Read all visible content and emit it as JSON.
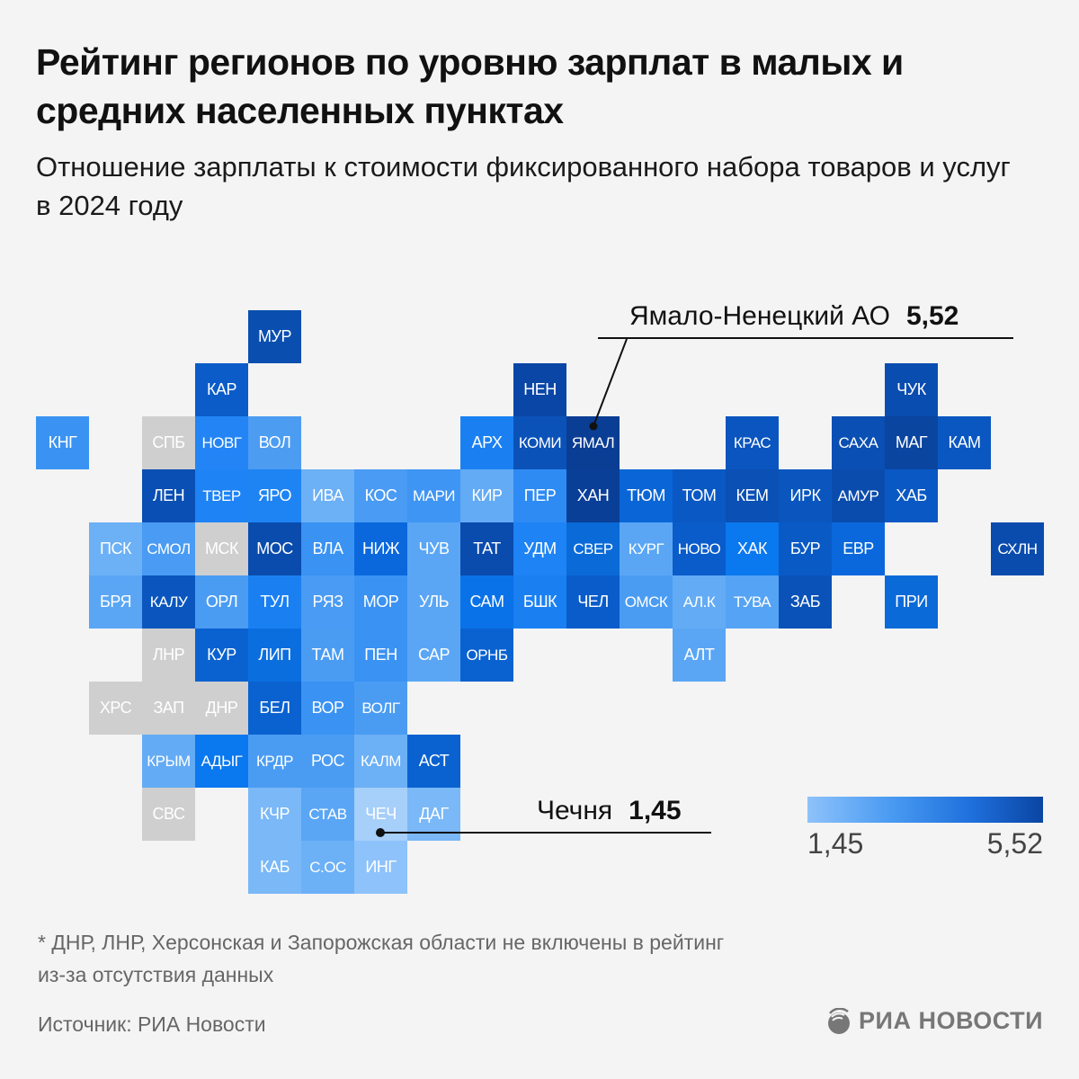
{
  "title": "Рейтинг регионов по уровню зарплат в малых и средних населенных пунктах",
  "subtitle": "Отношение зарплаты к стоимости фиксированного набора товаров и услуг в 2024 году",
  "callouts": {
    "max": {
      "label": "Ямало-Ненецкий АО",
      "value": "5,52",
      "region": "ЯМАЛ"
    },
    "min": {
      "label": "Чечня",
      "value": "1,45",
      "region": "ЧЕЧ"
    }
  },
  "legend": {
    "min": "1,45",
    "max": "5,52",
    "color_min": "#8ec2fb",
    "color_max": "#0a45a2"
  },
  "footnote_line1": "* ДНР, ЛНР, Херсонская и Запорожская области не включены в рейтинг",
  "footnote_line2": "из-за отсутствия данных",
  "source": "Источник: РИА Новости",
  "logo": "РИА НОВОСТИ",
  "no_data_color": "#cfcfcf",
  "chart_data": {
    "type": "heatmap",
    "title": "Рейтинг регионов по уровню зарплат в малых и средних населенных пунктах",
    "value_range": [
      1.45,
      5.52
    ],
    "labeled_values": {
      "ЯМАЛ": 5.52,
      "ЧЕЧ": 1.45
    },
    "no_data": [
      "СПБ",
      "МСК",
      "ЛНР",
      "ХРС",
      "ЗАП",
      "ДНР",
      "СВС"
    ],
    "regions": [
      {
        "code": "МУР",
        "col": 4,
        "row": 0,
        "color": "#0a4fb0"
      },
      {
        "code": "КАР",
        "col": 3,
        "row": 1,
        "color": "#0b5cc8"
      },
      {
        "code": "НЕН",
        "col": 9,
        "row": 1,
        "color": "#0a46a6"
      },
      {
        "code": "ЧУК",
        "col": 16,
        "row": 1,
        "color": "#0a4db0"
      },
      {
        "code": "КНГ",
        "col": 0,
        "row": 2,
        "color": "#3a93f2"
      },
      {
        "code": "СПБ",
        "col": 2,
        "row": 2,
        "color": "#cfcfcf"
      },
      {
        "code": "НОВГ",
        "col": 3,
        "row": 2,
        "color": "#2385f5"
      },
      {
        "code": "ВОЛ",
        "col": 4,
        "row": 2,
        "color": "#4c9cf2"
      },
      {
        "code": "АРХ",
        "col": 8,
        "row": 2,
        "color": "#1a80f2"
      },
      {
        "code": "КОМИ",
        "col": 9,
        "row": 2,
        "color": "#0b52b8"
      },
      {
        "code": "ЯМАЛ",
        "col": 10,
        "row": 2,
        "color": "#0a3d94"
      },
      {
        "code": "КРАС",
        "col": 13,
        "row": 2,
        "color": "#0a55bf"
      },
      {
        "code": "САХА",
        "col": 15,
        "row": 2,
        "color": "#0a4fb3"
      },
      {
        "code": "МАГ",
        "col": 16,
        "row": 2,
        "color": "#0a45a0"
      },
      {
        "code": "КАМ",
        "col": 17,
        "row": 2,
        "color": "#0a57c2"
      },
      {
        "code": "ЛЕН",
        "col": 2,
        "row": 3,
        "color": "#0a4fb3"
      },
      {
        "code": "ТВЕР",
        "col": 3,
        "row": 3,
        "color": "#1e83f5"
      },
      {
        "code": "ЯРО",
        "col": 4,
        "row": 3,
        "color": "#1f84f3"
      },
      {
        "code": "ИВА",
        "col": 5,
        "row": 3,
        "color": "#6cb0f6"
      },
      {
        "code": "КОС",
        "col": 6,
        "row": 3,
        "color": "#4a9bf3"
      },
      {
        "code": "МАРИ",
        "col": 7,
        "row": 3,
        "color": "#3f95f3"
      },
      {
        "code": "КИР",
        "col": 8,
        "row": 3,
        "color": "#63abf5"
      },
      {
        "code": "ПЕР",
        "col": 9,
        "row": 3,
        "color": "#2e8bf3"
      },
      {
        "code": "ХАН",
        "col": 10,
        "row": 3,
        "color": "#0a3f98"
      },
      {
        "code": "ТЮМ",
        "col": 11,
        "row": 3,
        "color": "#0a66d6"
      },
      {
        "code": "ТОМ",
        "col": 12,
        "row": 3,
        "color": "#0a58c4"
      },
      {
        "code": "КЕМ",
        "col": 13,
        "row": 3,
        "color": "#0a50b5"
      },
      {
        "code": "ИРК",
        "col": 14,
        "row": 3,
        "color": "#0a56be"
      },
      {
        "code": "АМУР",
        "col": 15,
        "row": 3,
        "color": "#0a4cad"
      },
      {
        "code": "ХАБ",
        "col": 16,
        "row": 3,
        "color": "#0a58c4"
      },
      {
        "code": "ПСК",
        "col": 1,
        "row": 4,
        "color": "#6cb0f6"
      },
      {
        "code": "СМОЛ",
        "col": 2,
        "row": 4,
        "color": "#4a9bf3"
      },
      {
        "code": "МСК",
        "col": 3,
        "row": 4,
        "color": "#cfcfcf"
      },
      {
        "code": "МОС",
        "col": 4,
        "row": 4,
        "color": "#0a4cad"
      },
      {
        "code": "ВЛА",
        "col": 5,
        "row": 4,
        "color": "#3a92f3"
      },
      {
        "code": "НИЖ",
        "col": 6,
        "row": 4,
        "color": "#0a68dc"
      },
      {
        "code": "ЧУВ",
        "col": 7,
        "row": 4,
        "color": "#5aa6f5"
      },
      {
        "code": "ТАТ",
        "col": 8,
        "row": 4,
        "color": "#0a4cad"
      },
      {
        "code": "УДМ",
        "col": 9,
        "row": 4,
        "color": "#1e83f5"
      },
      {
        "code": "СВЕР",
        "col": 10,
        "row": 4,
        "color": "#0a6ad8"
      },
      {
        "code": "КУРГ",
        "col": 11,
        "row": 4,
        "color": "#5aa6f5"
      },
      {
        "code": "НОВО",
        "col": 12,
        "row": 4,
        "color": "#0a5ccb"
      },
      {
        "code": "ХАК",
        "col": 13,
        "row": 4,
        "color": "#0a78ee"
      },
      {
        "code": "БУР",
        "col": 14,
        "row": 4,
        "color": "#0a5ac6"
      },
      {
        "code": "ЕВР",
        "col": 15,
        "row": 4,
        "color": "#0a68dc"
      },
      {
        "code": "СХЛН",
        "col": 18,
        "row": 4,
        "color": "#0a4cad"
      },
      {
        "code": "БРЯ",
        "col": 1,
        "row": 5,
        "color": "#5aa6f5"
      },
      {
        "code": "КАЛУ",
        "col": 2,
        "row": 5,
        "color": "#0a56be"
      },
      {
        "code": "ОРЛ",
        "col": 3,
        "row": 5,
        "color": "#4a9cf3"
      },
      {
        "code": "ТУЛ",
        "col": 4,
        "row": 5,
        "color": "#1a80f2"
      },
      {
        "code": "РЯЗ",
        "col": 5,
        "row": 5,
        "color": "#4a9bf3"
      },
      {
        "code": "МОР",
        "col": 6,
        "row": 5,
        "color": "#3a92f3"
      },
      {
        "code": "УЛЬ",
        "col": 7,
        "row": 5,
        "color": "#5aa6f5"
      },
      {
        "code": "САМ",
        "col": 8,
        "row": 5,
        "color": "#0a72e8"
      },
      {
        "code": "БШК",
        "col": 9,
        "row": 5,
        "color": "#1a80f2"
      },
      {
        "code": "ЧЕЛ",
        "col": 10,
        "row": 5,
        "color": "#0a5ccb"
      },
      {
        "code": "ОМСК",
        "col": 11,
        "row": 5,
        "color": "#4a9cf3"
      },
      {
        "code": "АЛ.К",
        "col": 12,
        "row": 5,
        "color": "#63abf5"
      },
      {
        "code": "ТУВА",
        "col": 13,
        "row": 5,
        "color": "#55a3f4"
      },
      {
        "code": "ЗАБ",
        "col": 14,
        "row": 5,
        "color": "#0a52b8"
      },
      {
        "code": "ПРИ",
        "col": 16,
        "row": 5,
        "color": "#0a6ad8"
      },
      {
        "code": "ЛНР",
        "col": 2,
        "row": 6,
        "color": "#cfcfcf"
      },
      {
        "code": "КУР",
        "col": 3,
        "row": 6,
        "color": "#0a62d0"
      },
      {
        "code": "ЛИП",
        "col": 4,
        "row": 6,
        "color": "#0a6edf"
      },
      {
        "code": "ТАМ",
        "col": 5,
        "row": 6,
        "color": "#4a9cf3"
      },
      {
        "code": "ПЕН",
        "col": 6,
        "row": 6,
        "color": "#3a92f3"
      },
      {
        "code": "САР",
        "col": 7,
        "row": 6,
        "color": "#5aa6f5"
      },
      {
        "code": "ОРНБ",
        "col": 8,
        "row": 6,
        "color": "#0a62d0"
      },
      {
        "code": "АЛТ",
        "col": 12,
        "row": 6,
        "color": "#5aa6f5"
      },
      {
        "code": "ХРС",
        "col": 1,
        "row": 7,
        "color": "#cfcfcf"
      },
      {
        "code": "ЗАП",
        "col": 2,
        "row": 7,
        "color": "#cfcfcf"
      },
      {
        "code": "ДНР",
        "col": 3,
        "row": 7,
        "color": "#cfcfcf"
      },
      {
        "code": "БЕЛ",
        "col": 4,
        "row": 7,
        "color": "#0a62d0"
      },
      {
        "code": "ВОР",
        "col": 5,
        "row": 7,
        "color": "#3a92f3"
      },
      {
        "code": "ВОЛГ",
        "col": 6,
        "row": 7,
        "color": "#4a9cf3"
      },
      {
        "code": "КРЫМ",
        "col": 2,
        "row": 8,
        "color": "#63abf5"
      },
      {
        "code": "АДЫГ",
        "col": 3,
        "row": 8,
        "color": "#0a78ee"
      },
      {
        "code": "КРДР",
        "col": 4,
        "row": 8,
        "color": "#4a9cf3"
      },
      {
        "code": "РОС",
        "col": 5,
        "row": 8,
        "color": "#4a9cf3"
      },
      {
        "code": "КАЛМ",
        "col": 6,
        "row": 8,
        "color": "#6cb0f6"
      },
      {
        "code": "АСТ",
        "col": 7,
        "row": 8,
        "color": "#0a62d0"
      },
      {
        "code": "СВС",
        "col": 2,
        "row": 9,
        "color": "#cfcfcf"
      },
      {
        "code": "КЧР",
        "col": 4,
        "row": 9,
        "color": "#7ab8f7"
      },
      {
        "code": "СТАВ",
        "col": 5,
        "row": 9,
        "color": "#5aa6f5"
      },
      {
        "code": "ЧЕЧ",
        "col": 6,
        "row": 9,
        "color": "#a6cffa"
      },
      {
        "code": "ДАГ",
        "col": 7,
        "row": 9,
        "color": "#7ab8f7"
      },
      {
        "code": "КАБ",
        "col": 4,
        "row": 10,
        "color": "#7ab8f7"
      },
      {
        "code": "С.ОС",
        "col": 5,
        "row": 10,
        "color": "#6cb0f6"
      },
      {
        "code": "ИНГ",
        "col": 6,
        "row": 10,
        "color": "#8ec2fb"
      }
    ]
  }
}
